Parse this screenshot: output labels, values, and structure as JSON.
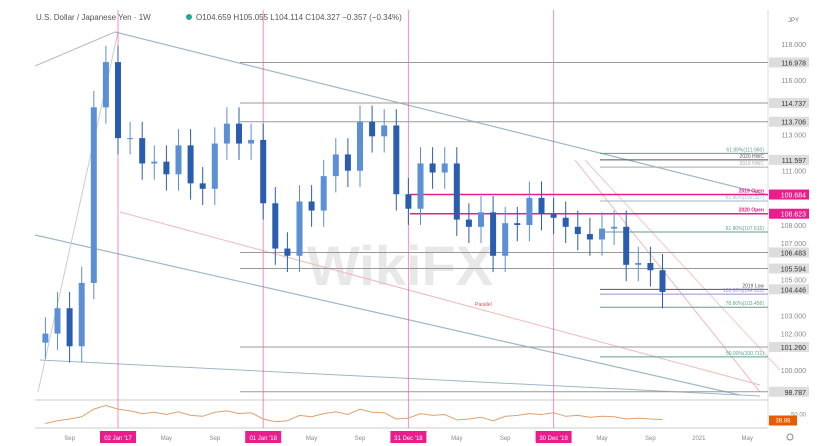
{
  "header": {
    "symbol_title": "U.S. Dollar / Japanese Yen · 1W",
    "ohlc": "O104.659 H105.055 L104.114 C104.327 −0.357 (−0.34%)"
  },
  "watermark": "WikiFX",
  "chart_data": {
    "type": "candlestick",
    "title": "U.S. Dollar / Japanese Yen · 1W",
    "currency": "JPY",
    "ylim": [
      98,
      119
    ],
    "start_month": "2016-07",
    "closes": [
      102.0,
      103.4,
      101.3,
      104.8,
      114.5,
      117.0,
      112.8,
      112.8,
      111.4,
      111.5,
      110.8,
      112.4,
      110.3,
      110.0,
      112.5,
      113.6,
      112.5,
      112.7,
      109.2,
      106.7,
      106.3,
      109.3,
      108.8,
      110.7,
      111.9,
      111.0,
      113.7,
      112.9,
      113.5,
      109.7,
      108.9,
      111.4,
      110.9,
      111.4,
      108.3,
      107.9,
      108.7,
      106.3,
      108.1,
      108.0,
      109.5,
      108.6,
      108.4,
      107.9,
      107.5,
      107.2,
      107.8,
      107.9,
      105.8,
      105.9,
      105.5,
      104.3
    ],
    "y_ticks": [
      "118.000",
      "116.000",
      "113.000",
      "111.000",
      "108.000",
      "107.000",
      "105.000",
      "103.000",
      "102.000",
      "100.000"
    ],
    "levels": [
      {
        "value": 116.978,
        "label": "",
        "tag": "116.978",
        "color": "#999999"
      },
      {
        "value": 114.737,
        "label": "",
        "tag": "114.737",
        "color": "#999999"
      },
      {
        "value": 113.706,
        "label": "",
        "tag": "113.706",
        "color": "#999999"
      },
      {
        "value": 111.96,
        "label": "61.80%(111.960)",
        "tag": "",
        "color": "#5f9e8f"
      },
      {
        "value": 111.597,
        "label": "2020 HWC",
        "tag": "111.597",
        "color": "#555555"
      },
      {
        "value": 111.2,
        "label": "2019 HWC",
        "tag": "",
        "color": "#aaaaaa"
      },
      {
        "value": 109.684,
        "label": "2019 Open",
        "tag": "109.684",
        "color": "#e91e8c"
      },
      {
        "value": 109.327,
        "label": "61.80%(109.327)",
        "tag": "",
        "color": "#9fb7c9"
      },
      {
        "value": 108.623,
        "label": "2020 Open",
        "tag": "108.623",
        "color": "#e91e8c"
      },
      {
        "value": 107.615,
        "label": "61.80%(107.615)",
        "tag": "",
        "color": "#5f9e8f"
      },
      {
        "value": 106.483,
        "label": "",
        "tag": "106.483",
        "color": "#999999"
      },
      {
        "value": 105.594,
        "label": "",
        "tag": "105.594",
        "color": "#999999"
      },
      {
        "value": 104.446,
        "label": "2019 Low",
        "tag": "104.446",
        "color": "#555555"
      },
      {
        "value": 104.183,
        "label": "100.00%(104.183)",
        "tag": "",
        "color": "#9b8fd6"
      },
      {
        "value": 103.456,
        "label": "78.60%(103.456)",
        "tag": "",
        "color": "#5f9e8f"
      },
      {
        "value": 101.26,
        "label": "",
        "tag": "101.260",
        "color": "#999999"
      },
      {
        "value": 100.711,
        "label": "50.00%(100.711)",
        "tag": "",
        "color": "#5f9e8f"
      },
      {
        "value": 98.787,
        "label": "",
        "tag": "98.787",
        "color": "#999999"
      }
    ],
    "annotations": [
      "Parallel"
    ],
    "x_ticks": [
      {
        "label": "Sep",
        "month": 2,
        "highlight": false
      },
      {
        "label": "02 Jan '17",
        "month": 6,
        "highlight": true
      },
      {
        "label": "May",
        "month": 10,
        "highlight": false
      },
      {
        "label": "Sep",
        "month": 14,
        "highlight": false
      },
      {
        "label": "01 Jan '18",
        "month": 18,
        "highlight": true
      },
      {
        "label": "May",
        "month": 22,
        "highlight": false
      },
      {
        "label": "Sep",
        "month": 26,
        "highlight": false
      },
      {
        "label": "31 Dec '18",
        "month": 30,
        "highlight": true
      },
      {
        "label": "May",
        "month": 34,
        "highlight": false
      },
      {
        "label": "Sep",
        "month": 38,
        "highlight": false
      },
      {
        "label": "30 Dec '19",
        "month": 42,
        "highlight": true
      },
      {
        "label": "May",
        "month": 46,
        "highlight": false
      },
      {
        "label": "Sep",
        "month": 50,
        "highlight": false
      },
      {
        "label": "2021",
        "month": 54,
        "highlight": false
      },
      {
        "label": "May",
        "month": 58,
        "highlight": false
      }
    ],
    "rsi": {
      "values": [
        30,
        36,
        40,
        45,
        62,
        70,
        62,
        58,
        52,
        55,
        50,
        56,
        48,
        46,
        55,
        58,
        52,
        54,
        40,
        34,
        36,
        48,
        45,
        52,
        56,
        50,
        62,
        55,
        54,
        40,
        42,
        52,
        48,
        50,
        38,
        40,
        44,
        36,
        46,
        48,
        52,
        50,
        54,
        46,
        48,
        44,
        46,
        45,
        40,
        42,
        40,
        38.86
      ],
      "level_label": "50.00",
      "current_label": "38.86"
    },
    "colors": {
      "up": "#5b8fd6",
      "down": "#2a5db0",
      "highlight": "#e91e8c",
      "rsi": "#e0a070",
      "rsi_tag": "#e65c00"
    }
  }
}
